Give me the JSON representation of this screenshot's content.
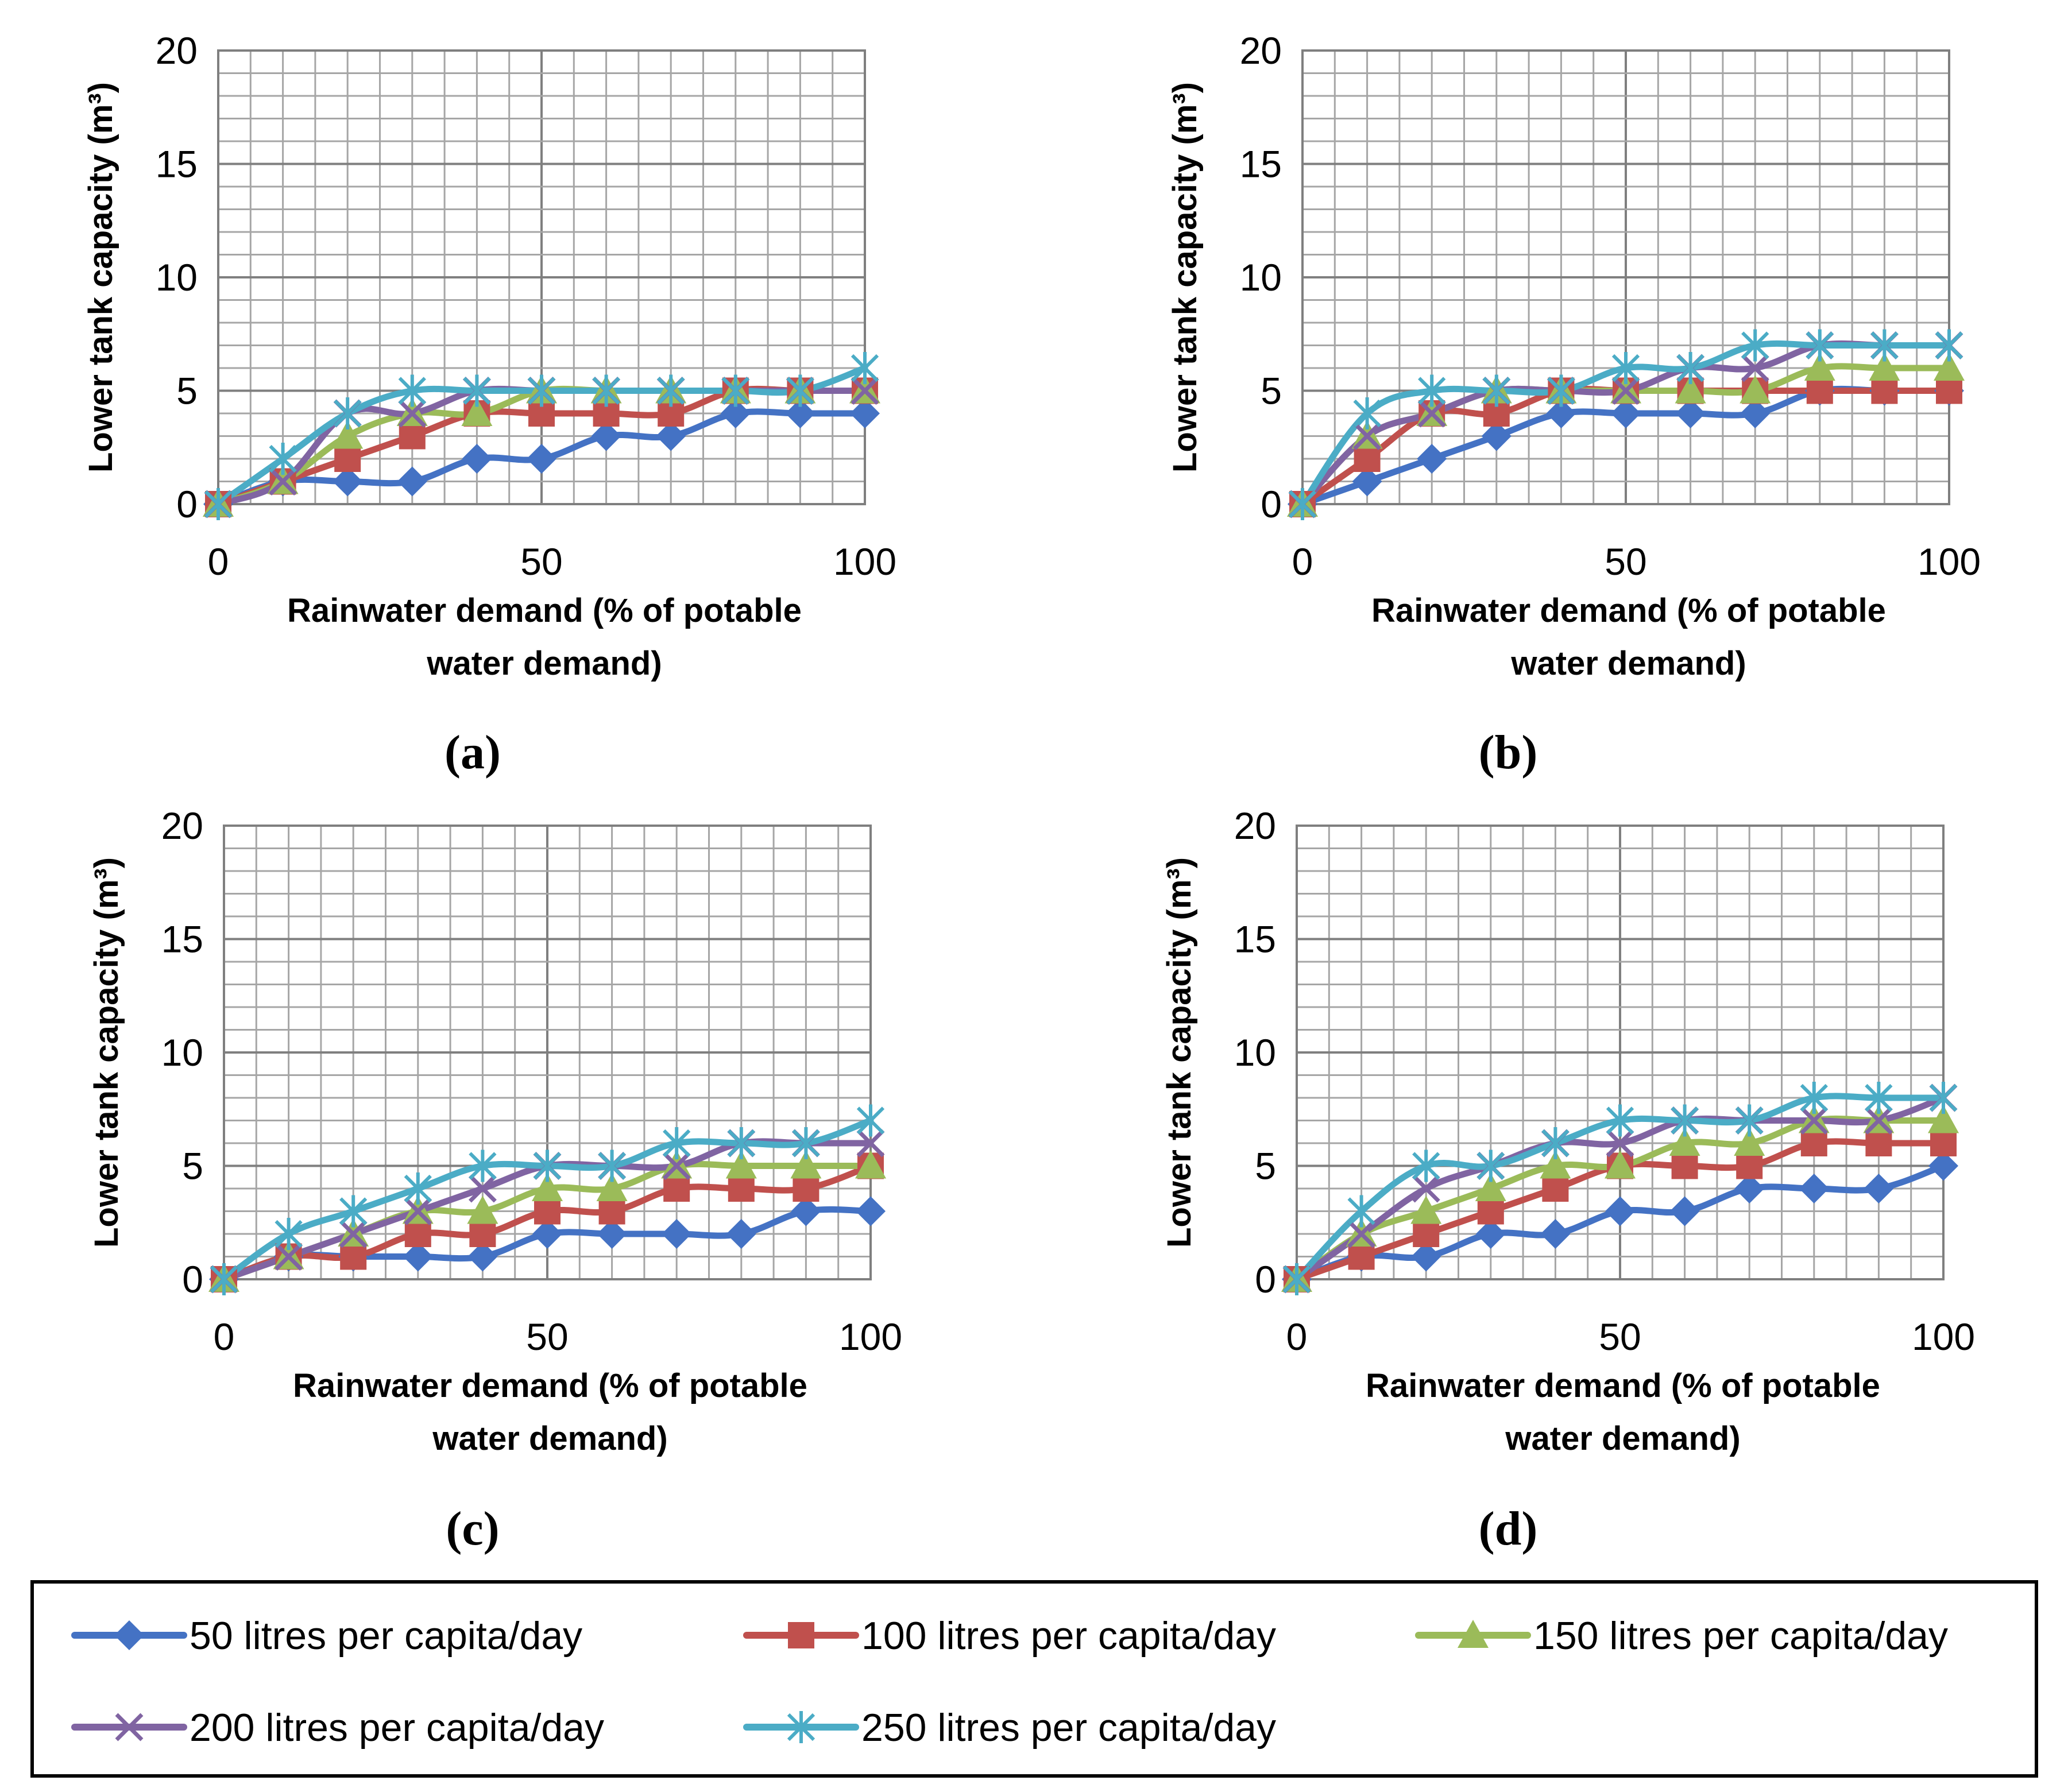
{
  "figure": {
    "legend": [
      {
        "label": "50 litres per capita/day",
        "color": "#4472C4",
        "marker": "diamond"
      },
      {
        "label": "100 litres per capita/day",
        "color": "#C0504D",
        "marker": "square"
      },
      {
        "label": "150 litres per capita/day",
        "color": "#9BBB59",
        "marker": "triangle"
      },
      {
        "label": "200 litres per capita/day",
        "color": "#8064A2",
        "marker": "x"
      },
      {
        "label": "250 litres per capita/day",
        "color": "#4BACC6",
        "marker": "asterisk"
      }
    ]
  },
  "chart_data": [
    {
      "type": "line",
      "panel_label": "(a)",
      "xlabel_lines": [
        "Rainwater demand (% of potable",
        "water demand)"
      ],
      "ylabel": "Lower tank capacity (m³)",
      "xlim": [
        0,
        100
      ],
      "ylim": [
        0,
        20
      ],
      "xticks": [
        0,
        50,
        100
      ],
      "yticks": [
        0,
        5,
        10,
        15,
        20
      ],
      "grid": true,
      "x": [
        0,
        10,
        20,
        30,
        40,
        50,
        60,
        70,
        80,
        90,
        100
      ],
      "series": [
        {
          "name": "50 litres per capita/day",
          "values": [
            0,
            1,
            1,
            1,
            2,
            2,
            3,
            3,
            4,
            4,
            4
          ]
        },
        {
          "name": "100 litres per capita/day",
          "values": [
            0,
            1,
            2,
            3,
            4,
            4,
            4,
            4,
            5,
            5,
            5
          ]
        },
        {
          "name": "150 litres per capita/day",
          "values": [
            0,
            1,
            3,
            4,
            4,
            5,
            5,
            5,
            5,
            5,
            5
          ]
        },
        {
          "name": "200 litres per capita/day",
          "values": [
            0,
            1,
            4,
            4,
            5,
            5,
            5,
            5,
            5,
            5,
            5
          ]
        },
        {
          "name": "250 litres per capita/day",
          "values": [
            0,
            2,
            4,
            5,
            5,
            5,
            5,
            5,
            5,
            5,
            6
          ]
        }
      ]
    },
    {
      "type": "line",
      "panel_label": "(b)",
      "xlabel_lines": [
        "Rainwater demand (% of potable",
        "water demand)"
      ],
      "ylabel": "Lower tank capacity (m³)",
      "xlim": [
        0,
        100
      ],
      "ylim": [
        0,
        20
      ],
      "xticks": [
        0,
        50,
        100
      ],
      "yticks": [
        0,
        5,
        10,
        15,
        20
      ],
      "grid": true,
      "x": [
        0,
        10,
        20,
        30,
        40,
        50,
        60,
        70,
        80,
        90,
        100
      ],
      "series": [
        {
          "name": "50 litres per capita/day",
          "values": [
            0,
            1,
            2,
            3,
            4,
            4,
            4,
            4,
            5,
            5,
            5
          ]
        },
        {
          "name": "100 litres per capita/day",
          "values": [
            0,
            2,
            4,
            4,
            5,
            5,
            5,
            5,
            5,
            5,
            5
          ]
        },
        {
          "name": "150 litres per capita/day",
          "values": [
            0,
            3,
            4,
            5,
            5,
            5,
            5,
            5,
            6,
            6,
            6
          ]
        },
        {
          "name": "200 litres per capita/day",
          "values": [
            0,
            3,
            4,
            5,
            5,
            5,
            6,
            6,
            7,
            7,
            7
          ]
        },
        {
          "name": "250 litres per capita/day",
          "values": [
            0,
            4,
            5,
            5,
            5,
            6,
            6,
            7,
            7,
            7,
            7
          ]
        }
      ]
    },
    {
      "type": "line",
      "panel_label": "(c)",
      "xlabel_lines": [
        "Rainwater demand (% of potable",
        "water demand)"
      ],
      "ylabel": "Lower tank capacity (m³)",
      "xlim": [
        0,
        100
      ],
      "ylim": [
        0,
        20
      ],
      "xticks": [
        0,
        50,
        100
      ],
      "yticks": [
        0,
        5,
        10,
        15,
        20
      ],
      "grid": true,
      "x": [
        0,
        10,
        20,
        30,
        40,
        50,
        60,
        70,
        80,
        90,
        100
      ],
      "series": [
        {
          "name": "50 litres per capita/day",
          "values": [
            0,
            1,
            1,
            1,
            1,
            2,
            2,
            2,
            2,
            3,
            3
          ]
        },
        {
          "name": "100 litres per capita/day",
          "values": [
            0,
            1,
            1,
            2,
            2,
            3,
            3,
            4,
            4,
            4,
            5
          ]
        },
        {
          "name": "150 litres per capita/day",
          "values": [
            0,
            1,
            2,
            3,
            3,
            4,
            4,
            5,
            5,
            5,
            5
          ]
        },
        {
          "name": "200 litres per capita/day",
          "values": [
            0,
            1,
            2,
            3,
            4,
            5,
            5,
            5,
            6,
            6,
            6
          ]
        },
        {
          "name": "250 litres per capita/day",
          "values": [
            0,
            2,
            3,
            4,
            5,
            5,
            5,
            6,
            6,
            6,
            7
          ]
        }
      ]
    },
    {
      "type": "line",
      "panel_label": "(d)",
      "xlabel_lines": [
        "Rainwater demand (% of potable",
        "water demand)"
      ],
      "ylabel": "Lower tank capacity (m³)",
      "xlim": [
        0,
        100
      ],
      "ylim": [
        0,
        20
      ],
      "xticks": [
        0,
        50,
        100
      ],
      "yticks": [
        0,
        5,
        10,
        15,
        20
      ],
      "grid": true,
      "x": [
        0,
        10,
        20,
        30,
        40,
        50,
        60,
        70,
        80,
        90,
        100
      ],
      "series": [
        {
          "name": "50 litres per capita/day",
          "values": [
            0,
            1,
            1,
            2,
            2,
            3,
            3,
            4,
            4,
            4,
            5
          ]
        },
        {
          "name": "100 litres per capita/day",
          "values": [
            0,
            1,
            2,
            3,
            4,
            5,
            5,
            5,
            6,
            6,
            6
          ]
        },
        {
          "name": "150 litres per capita/day",
          "values": [
            0,
            2,
            3,
            4,
            5,
            5,
            6,
            6,
            7,
            7,
            7
          ]
        },
        {
          "name": "200 litres per capita/day",
          "values": [
            0,
            2,
            4,
            5,
            6,
            6,
            7,
            7,
            7,
            7,
            8
          ]
        },
        {
          "name": "250 litres per capita/day",
          "values": [
            0,
            3,
            5,
            5,
            6,
            7,
            7,
            7,
            8,
            8,
            8
          ]
        }
      ]
    }
  ]
}
